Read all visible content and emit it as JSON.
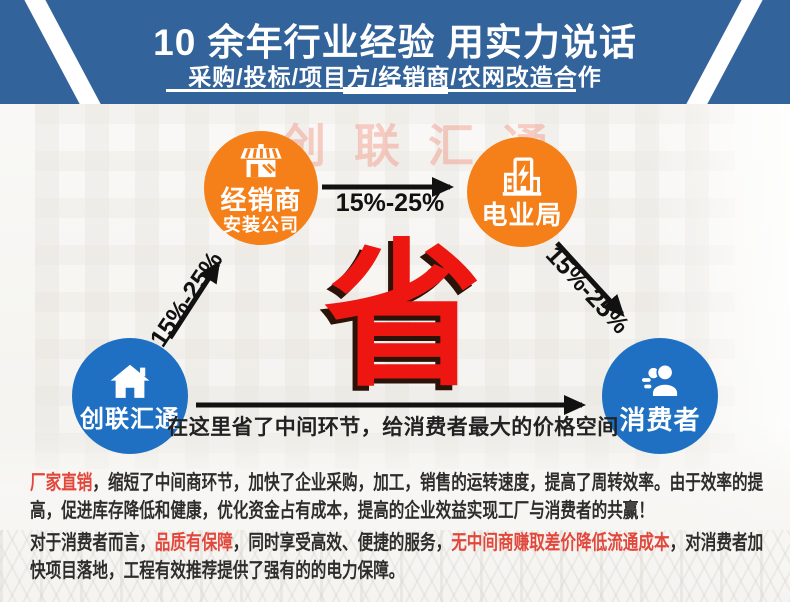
{
  "header": {
    "title": "10 余年行业经验 用实力说话",
    "subtitle": "采购/投标/项目方/经销商/农网改造合作"
  },
  "watermark": "创联汇通",
  "diagram": {
    "nodes": [
      {
        "id": "dealer",
        "label": "经销商",
        "sublabel": "安装公司",
        "icon": "storefront-icon",
        "color": "#f5801a"
      },
      {
        "id": "power",
        "label": "电业局",
        "sublabel": "",
        "icon": "power-building-icon",
        "color": "#f5801a"
      },
      {
        "id": "company",
        "label": "创联汇通",
        "sublabel": "",
        "icon": "home-icon",
        "color": "#1f70c2"
      },
      {
        "id": "consumer",
        "label": "消费者",
        "sublabel": "",
        "icon": "people-icon",
        "color": "#1f70c2"
      }
    ],
    "arrows": [
      {
        "from": "经销商",
        "to": "电业局",
        "label": "15%-25%"
      },
      {
        "from": "创联汇通",
        "to": "经销商",
        "label": "15%-25%"
      },
      {
        "from": "电业局",
        "to": "消费者",
        "label": "15%-25%"
      },
      {
        "from": "创联汇通",
        "to": "消费者",
        "label": ""
      }
    ],
    "highlight": "省",
    "caption": "在这里省了中间环节，给消费者最大的价格空间"
  },
  "paragraphs": [
    {
      "segments": [
        {
          "text": "厂家直销",
          "red": true
        },
        {
          "text": "，缩短了中间商环节，加快了企业采购，加工，销售的运转速度，提高了周转效率。由于效率的提高，促进库存降低和健康，优化资金占有成本，提高的企业效益实现工厂与消费者的共赢！",
          "red": false
        }
      ]
    },
    {
      "segments": [
        {
          "text": "对于消费者而言，",
          "red": false
        },
        {
          "text": "品质有保障",
          "red": true
        },
        {
          "text": "，同时享受高效、便捷的服务，",
          "red": false
        },
        {
          "text": "无中间商赚取差价降低流通成本",
          "red": true
        },
        {
          "text": "，对消费者加快项目落地，工程有效推荐提供了强有的的电力保障。",
          "red": false
        }
      ]
    }
  ],
  "colors": {
    "header_blue": "#33639b",
    "node_blue": "#1f70c2",
    "node_orange": "#f5801a",
    "highlight_red": "#ee1610",
    "text_red": "#e2473c",
    "arrow_black": "#111111"
  }
}
